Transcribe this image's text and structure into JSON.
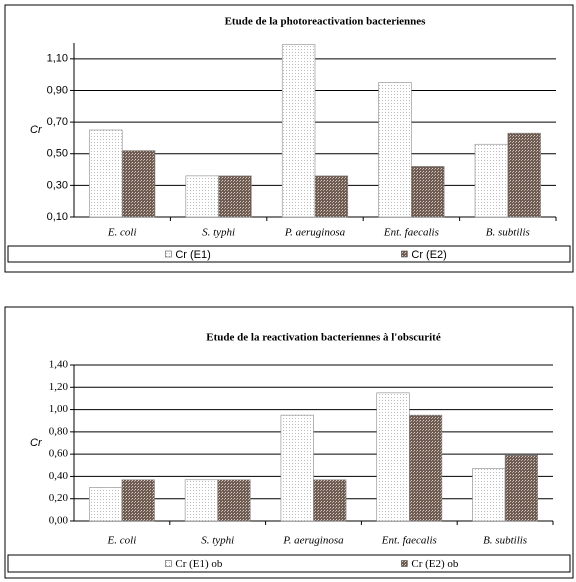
{
  "chart_data": [
    {
      "type": "bar",
      "title": "Etude de la photoreactivation bacteriennes",
      "y_label": "Cr",
      "categories": [
        "E. coli",
        "S. typhi",
        "P. aeruginosa",
        "Ent. faecalis",
        "B. subtilis"
      ],
      "series": [
        {
          "name": "Cr (E1)",
          "color": "#eeeeee",
          "values": [
            0.65,
            0.36,
            1.19,
            0.95,
            0.56
          ]
        },
        {
          "name": "Cr (E2)",
          "color": "#8c7b70",
          "values": [
            0.52,
            0.36,
            0.36,
            0.42,
            0.63
          ]
        }
      ],
      "ylim": [
        0.1,
        1.2
      ],
      "yticks": [
        {
          "value": 0.1,
          "label": "0,10"
        },
        {
          "value": 0.3,
          "label": "0,30"
        },
        {
          "value": 0.5,
          "label": "0,50"
        },
        {
          "value": 0.7,
          "label": "0,70"
        },
        {
          "value": 0.9,
          "label": "0,90"
        },
        {
          "value": 1.1,
          "label": "1,10"
        }
      ],
      "grid": true,
      "legend": "bottom"
    },
    {
      "type": "bar",
      "title": "Etude de la reactivation bacteriennes à l'obscurité",
      "y_label": "Cr",
      "categories": [
        "E. coli",
        "S. typhi",
        "P. aeruginosa",
        "Ent. faecalis",
        "B. subtilis"
      ],
      "series": [
        {
          "name": "Cr (E1) ob",
          "color": "#eeeeee",
          "values": [
            0.3,
            0.37,
            0.95,
            1.15,
            0.47
          ]
        },
        {
          "name": "Cr (E2) ob",
          "color": "#8c7b70",
          "values": [
            0.37,
            0.37,
            0.37,
            0.95,
            0.59
          ]
        }
      ],
      "ylim": [
        0,
        1.4
      ],
      "yticks": [
        {
          "value": 0,
          "label": "0,00"
        },
        {
          "value": 0.2,
          "label": "0,20"
        },
        {
          "value": 0.4,
          "label": "0,40"
        },
        {
          "value": 0.6,
          "label": "0,60"
        },
        {
          "value": 0.8,
          "label": "0,80"
        },
        {
          "value": 1.0,
          "label": "1,00"
        },
        {
          "value": 1.2,
          "label": "1,20"
        },
        {
          "value": 1.4,
          "label": "1,40"
        }
      ],
      "grid": true,
      "legend": "bottom"
    }
  ]
}
